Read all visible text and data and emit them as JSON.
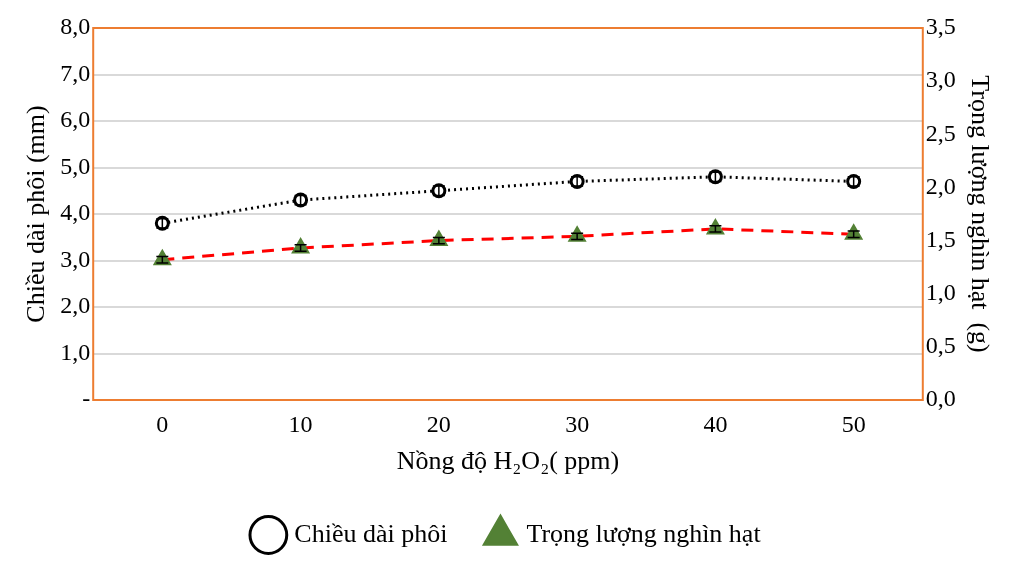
{
  "chart_data": {
    "type": "line",
    "categories": [
      "0",
      "10",
      "20",
      "30",
      "40",
      "50"
    ],
    "xlabel": "Nồng độ H₂O₂( ppm)",
    "ylabel": "Chiều dài phôi (mm)",
    "y2label": "Trọng lượng nghìn hạt  (g)",
    "series": [
      {
        "name": "Chiều dài phôi",
        "color": "#000000",
        "values": [
          3.8,
          4.3,
          4.5,
          4.7,
          4.8,
          4.7
        ],
        "errors": [
          0.1,
          0.1,
          0.1,
          0.1,
          0.1,
          0.1
        ],
        "marker": "circle",
        "line_style": "dotted"
      },
      {
        "name": "Trọng lượng nghìn hạt",
        "color": "#ff0000",
        "values": [
          1.32,
          1.43,
          1.5,
          1.54,
          1.61,
          1.56
        ],
        "errors": [
          0.03,
          0.03,
          0.03,
          0.03,
          0.03,
          0.03
        ],
        "marker": "triangle",
        "line_style": "dashed",
        "axis": "y2"
      }
    ],
    "ylim": [
      0,
      8
    ],
    "yticks": [
      {
        "value": 0,
        "label": "-"
      },
      {
        "value": 1,
        "label": "1,0"
      },
      {
        "value": 2,
        "label": "2,0"
      },
      {
        "value": 3,
        "label": "3,0"
      },
      {
        "value": 4,
        "label": "4,0"
      },
      {
        "value": 5,
        "label": "5,0"
      },
      {
        "value": 6,
        "label": "6,0"
      },
      {
        "value": 7,
        "label": "7,0"
      },
      {
        "value": 8,
        "label": "8,0"
      }
    ],
    "y2lim": [
      0,
      3.5
    ],
    "y2ticks": [
      {
        "value": 0,
        "label": "0,0"
      },
      {
        "value": 0.5,
        "label": "0,5"
      },
      {
        "value": 1,
        "label": "1,0"
      },
      {
        "value": 1.5,
        "label": "1,5"
      },
      {
        "value": 2,
        "label": "2,0"
      },
      {
        "value": 2.5,
        "label": "2,5"
      },
      {
        "value": 3,
        "label": "3,0"
      },
      {
        "value": 3.5,
        "label": "3,5"
      }
    ],
    "grid": "y",
    "legend": "bottom"
  }
}
